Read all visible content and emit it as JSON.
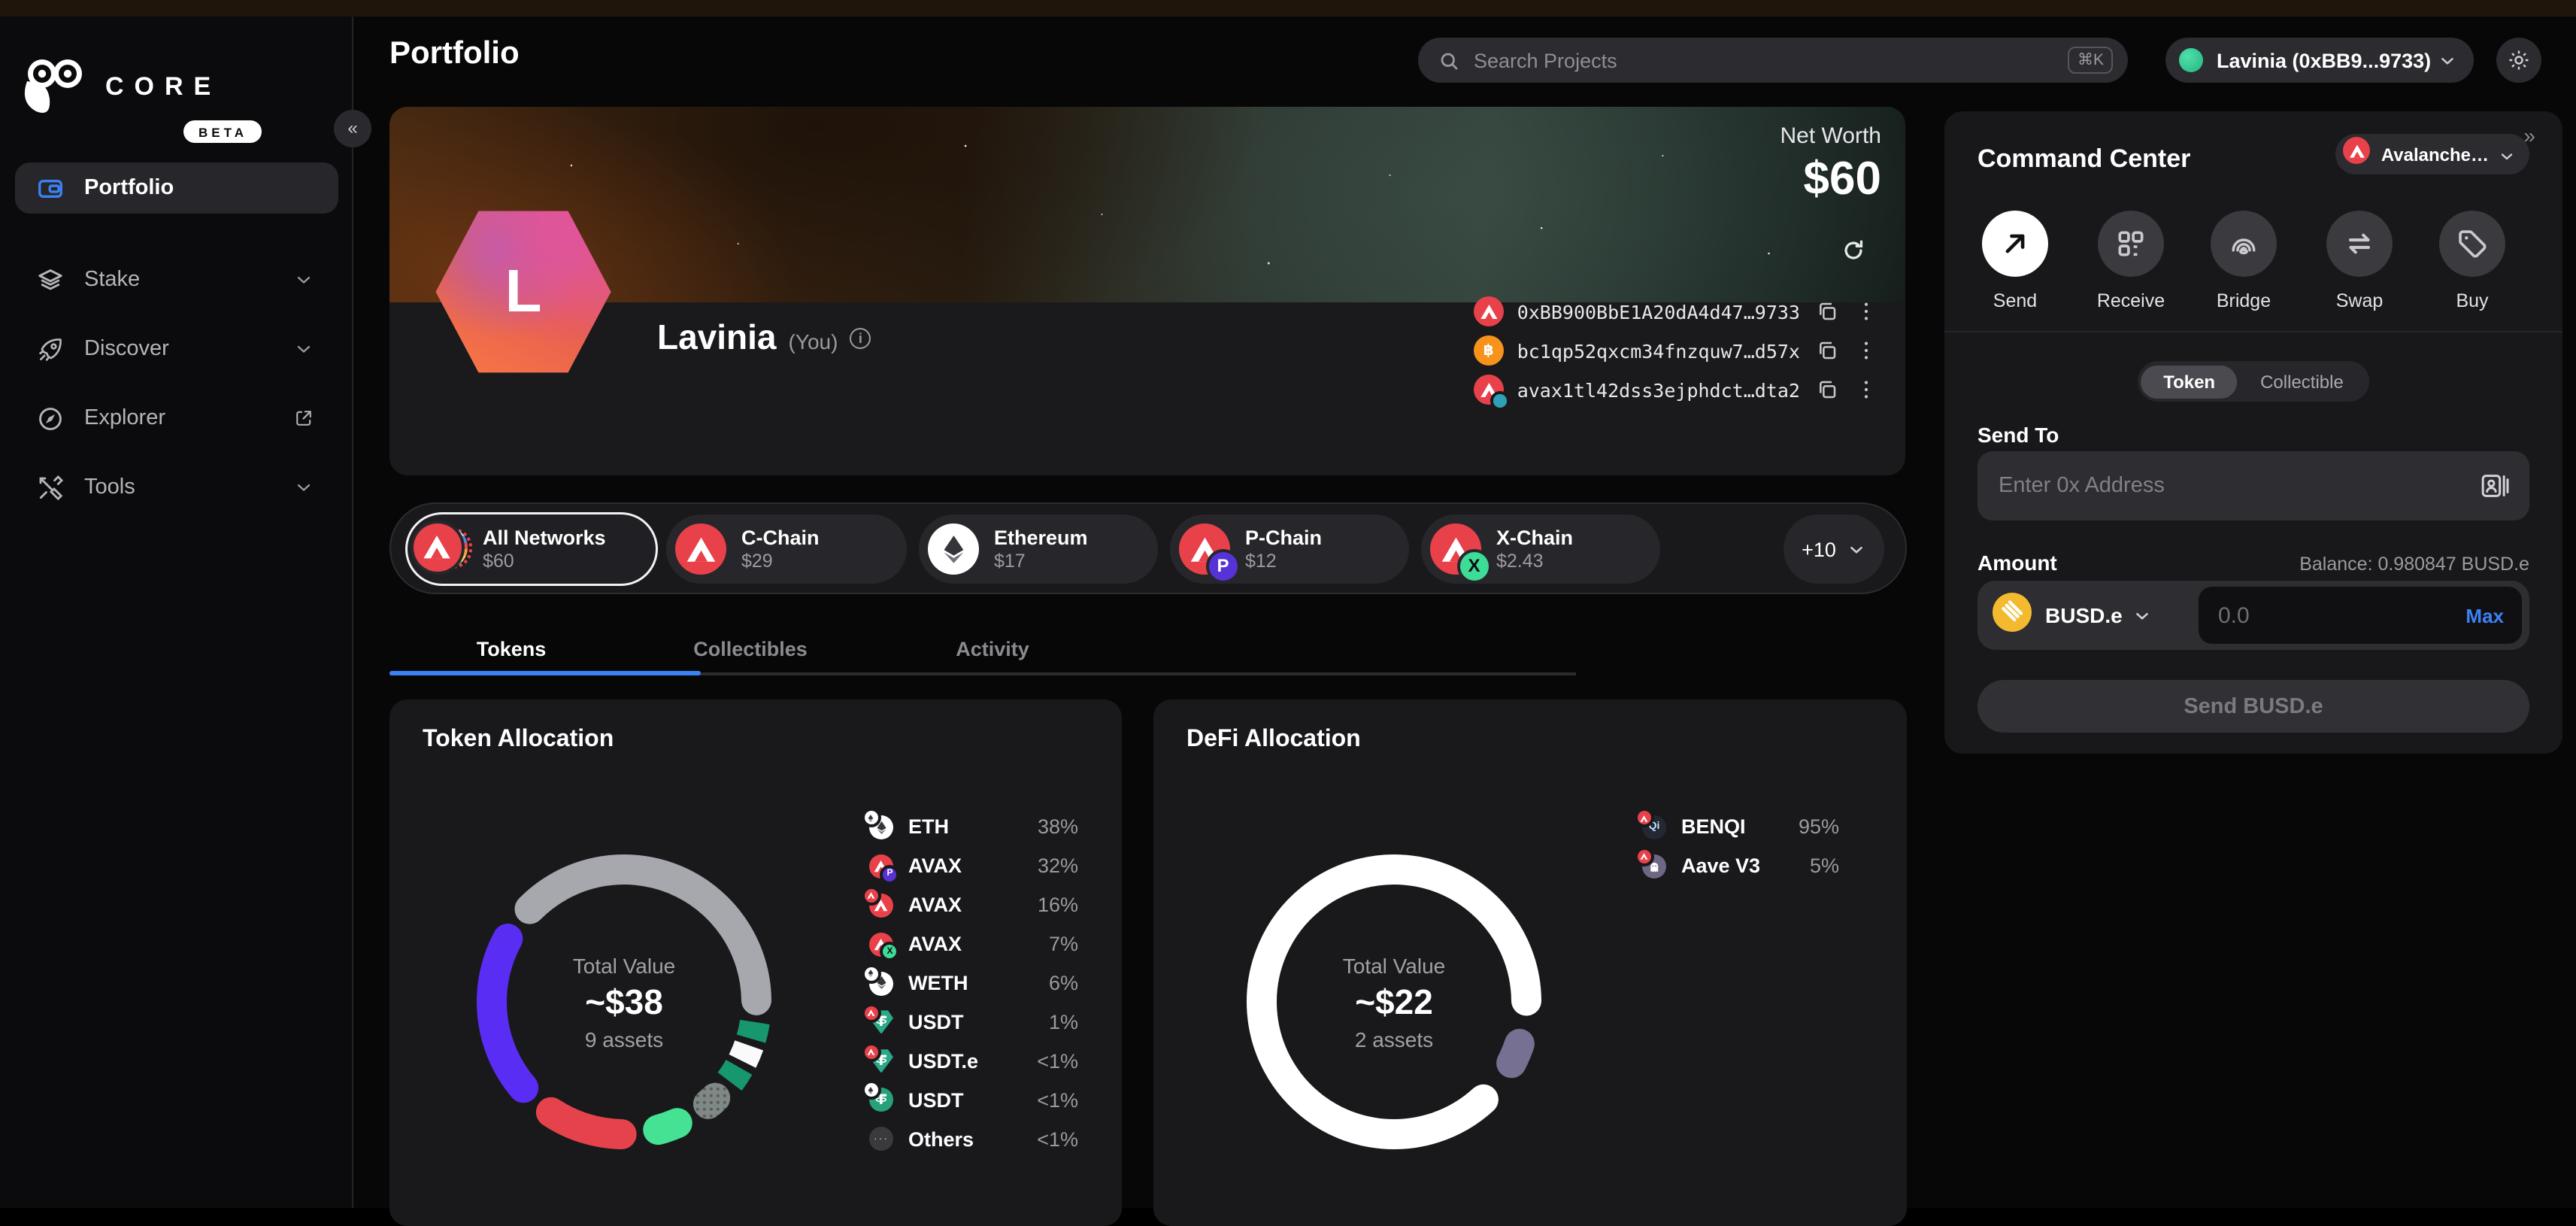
{
  "app": {
    "brand": "CORE",
    "beta": "BETA",
    "collapse_glyph": "«",
    "expand_glyph": "»"
  },
  "topbar": {
    "search_placeholder": "Search Projects",
    "shortcut": "⌘K",
    "account_label": "Lavinia (0xBB9...9733)"
  },
  "page": {
    "title": "Portfolio"
  },
  "sidebar": {
    "items": [
      {
        "label": "Portfolio",
        "icon": "wallet-icon",
        "active": true,
        "trail": "none"
      },
      {
        "label": "Stake",
        "icon": "stake-icon",
        "active": false,
        "trail": "chevron"
      },
      {
        "label": "Discover",
        "icon": "rocket-icon",
        "active": false,
        "trail": "chevron"
      },
      {
        "label": "Explorer",
        "icon": "compass-icon",
        "active": false,
        "trail": "external"
      },
      {
        "label": "Tools",
        "icon": "tools-icon",
        "active": false,
        "trail": "chevron"
      }
    ]
  },
  "header": {
    "net_worth_label": "Net Worth",
    "net_worth_value": "$60",
    "avatar_letter": "L",
    "name": "Lavinia",
    "suffix": "(You)",
    "addresses": [
      {
        "icon": "avax",
        "badge": "none",
        "text": "0xBB900BbE1A20dA4d47…9733"
      },
      {
        "icon": "btc",
        "badge": "none",
        "text": "bc1qp52qxcm34fnzquw7…d57x"
      },
      {
        "icon": "avax",
        "badge": "globe",
        "text": "avax1tl42dss3ejphdct…dta2"
      }
    ]
  },
  "networks": {
    "chips": [
      {
        "name": "All Networks",
        "value": "$60",
        "icon": "allnet",
        "badge": "none",
        "selected": true
      },
      {
        "name": "C-Chain",
        "value": "$29",
        "icon": "avax",
        "badge": "none",
        "selected": false
      },
      {
        "name": "Ethereum",
        "value": "$17",
        "icon": "eth",
        "badge": "none",
        "selected": false
      },
      {
        "name": "P-Chain",
        "value": "$12",
        "icon": "avax",
        "badge": "p",
        "selected": false
      },
      {
        "name": "X-Chain",
        "value": "$2.43",
        "icon": "avax",
        "badge": "x",
        "selected": false
      }
    ],
    "more": "+10"
  },
  "tabs": [
    {
      "label": "Tokens",
      "active": true
    },
    {
      "label": "Collectibles",
      "active": false
    },
    {
      "label": "Activity",
      "active": false
    }
  ],
  "token_allocation": {
    "title": "Token Allocation",
    "center": {
      "label": "Total Value",
      "value": "~$38",
      "sub": "9 assets"
    },
    "legend": [
      {
        "icon": "eth",
        "badge": "eth",
        "label": "ETH",
        "pct": "38%"
      },
      {
        "icon": "avax",
        "badge": "p",
        "label": "AVAX",
        "pct": "32%"
      },
      {
        "icon": "avax",
        "badge": "avax",
        "label": "AVAX",
        "pct": "16%"
      },
      {
        "icon": "avax",
        "badge": "x",
        "label": "AVAX",
        "pct": "7%"
      },
      {
        "icon": "eth",
        "badge": "eth",
        "label": "WETH",
        "pct": "6%"
      },
      {
        "icon": "usdt-gem",
        "badge": "avax",
        "label": "USDT",
        "pct": "1%"
      },
      {
        "icon": "usdt-gem",
        "badge": "avax",
        "label": "USDT.e",
        "pct": "<1%"
      },
      {
        "icon": "usdt",
        "badge": "eth",
        "label": "USDT",
        "pct": "<1%"
      },
      {
        "icon": "others",
        "badge": "none",
        "label": "Others",
        "pct": "<1%"
      }
    ],
    "segments": [
      {
        "color": "#a7a7ae",
        "start": -45.5,
        "end": 89.3,
        "cap": "round"
      },
      {
        "color": "#17976d",
        "start": 98.8,
        "end": 106.2,
        "cap": "butt"
      },
      {
        "color": "#fafafa",
        "start": 109.2,
        "end": 116.6,
        "cap": "butt"
      },
      {
        "color": "#17976d",
        "start": 119.6,
        "end": 127.0,
        "cap": "butt"
      },
      {
        "color": "dots",
        "start": 136.5,
        "end": 140.5,
        "cap": "round"
      },
      {
        "color": "#46e294",
        "start": 156.3,
        "end": 165.1,
        "cap": "round"
      },
      {
        "color": "#e6424b",
        "start": 181.1,
        "end": 213.5,
        "cap": "round"
      },
      {
        "color": "#5a2df4",
        "start": 229.5,
        "end": 298.5,
        "cap": "round"
      }
    ]
  },
  "defi_allocation": {
    "title": "DeFi Allocation",
    "center": {
      "label": "Total Value",
      "value": "~$22",
      "sub": "2 assets"
    },
    "legend": [
      {
        "icon": "benqi",
        "badge": "avax",
        "label": "BENQI",
        "pct": "95%"
      },
      {
        "icon": "aave",
        "badge": "avax",
        "label": "Aave V3",
        "pct": "5%"
      }
    ],
    "segments": [
      {
        "color": "#ffffff",
        "start": 137.5,
        "end": 449.5,
        "cap": "round"
      },
      {
        "color": "#767092",
        "start": 108.5,
        "end": 117.5,
        "cap": "round"
      }
    ]
  },
  "chart_data": [
    {
      "type": "pie",
      "title": "Token Allocation",
      "center_label": "Total Value",
      "center_value": "~$38",
      "center_sub": "9 assets",
      "labels": [
        "ETH",
        "AVAX",
        "AVAX",
        "AVAX",
        "WETH",
        "USDT",
        "USDT.e",
        "USDT",
        "Others"
      ],
      "values": [
        38,
        32,
        16,
        7,
        6,
        1,
        0.5,
        0.5,
        0.5
      ],
      "value_labels": [
        "38%",
        "32%",
        "16%",
        "7%",
        "6%",
        "1%",
        "<1%",
        "<1%",
        "<1%"
      ],
      "colors": [
        "#a7a7ae",
        "#5a2df4",
        "#e6424b",
        "#46e294",
        "#7f8884",
        "#17976d",
        "#17976d",
        "#fafafa",
        "#3a3a3e"
      ],
      "legend_position": "right"
    },
    {
      "type": "pie",
      "title": "DeFi Allocation",
      "center_label": "Total Value",
      "center_value": "~$22",
      "center_sub": "2 assets",
      "labels": [
        "BENQI",
        "Aave V3"
      ],
      "values": [
        95,
        5
      ],
      "value_labels": [
        "95%",
        "5%"
      ],
      "colors": [
        "#ffffff",
        "#767092"
      ],
      "legend_position": "right"
    }
  ],
  "command_center": {
    "title": "Command Center",
    "network": "Avalanche…",
    "actions": [
      {
        "label": "Send",
        "icon": "send-arrow-icon",
        "active": true
      },
      {
        "label": "Receive",
        "icon": "qr-icon",
        "active": false
      },
      {
        "label": "Bridge",
        "icon": "bridge-icon",
        "active": false
      },
      {
        "label": "Swap",
        "icon": "swap-icon",
        "active": false
      },
      {
        "label": "Buy",
        "icon": "tag-icon",
        "active": false
      }
    ],
    "toggle": {
      "options": [
        "Token",
        "Collectible"
      ],
      "selected": "Token"
    },
    "send_to_label": "Send To",
    "address_placeholder": "Enter 0x Address",
    "amount_label": "Amount",
    "balance": "Balance: 0.980847 BUSD.e",
    "token": "BUSD.e",
    "amount_placeholder": "0.0",
    "max_label": "Max",
    "submit_label": "Send BUSD.e"
  }
}
